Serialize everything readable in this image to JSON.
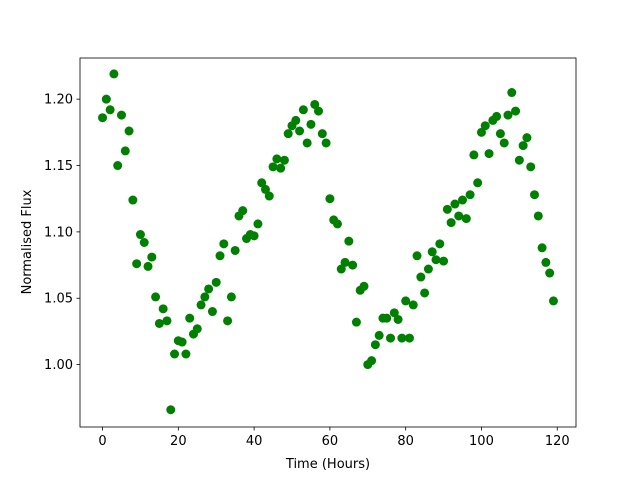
{
  "chart_data": {
    "type": "scatter",
    "xlabel": "Time (Hours)",
    "ylabel": "Normalised Flux",
    "color": "#008000",
    "xlim": [
      -5.95,
      124.95
    ],
    "ylim": [
      0.953,
      1.231
    ],
    "xticks": [
      0,
      20,
      40,
      60,
      80,
      100,
      120
    ],
    "yticks": [
      {
        "value": 1.0,
        "label": "1.00"
      },
      {
        "value": 1.05,
        "label": "1.05"
      },
      {
        "value": 1.1,
        "label": "1.10"
      },
      {
        "value": 1.15,
        "label": "1.15"
      },
      {
        "value": 1.2,
        "label": "1.20"
      }
    ],
    "grid": false,
    "x": [
      0,
      1,
      2,
      3,
      4,
      5,
      6,
      7,
      8,
      9,
      10,
      11,
      12,
      13,
      14,
      15,
      16,
      17,
      18,
      19,
      20,
      21,
      22,
      23,
      24,
      25,
      26,
      27,
      28,
      29,
      30,
      31,
      32,
      33,
      34,
      35,
      36,
      37,
      38,
      39,
      40,
      41,
      42,
      43,
      44,
      45,
      46,
      47,
      48,
      49,
      50,
      51,
      52,
      53,
      54,
      55,
      56,
      57,
      58,
      59,
      60,
      61,
      62,
      63,
      64,
      65,
      66,
      67,
      68,
      69,
      70,
      71,
      72,
      73,
      74,
      75,
      76,
      77,
      78,
      79,
      80,
      81,
      82,
      83,
      84,
      85,
      86,
      87,
      88,
      89,
      90,
      91,
      92,
      93,
      94,
      95,
      96,
      97,
      98,
      99,
      100,
      101,
      102,
      103,
      104,
      105,
      106,
      107,
      108,
      109,
      110,
      111,
      112,
      113,
      114,
      115,
      116,
      117,
      118,
      119
    ],
    "values": [
      1.186,
      1.2,
      1.192,
      1.219,
      1.15,
      1.188,
      1.161,
      1.176,
      1.124,
      1.076,
      1.098,
      1.092,
      1.074,
      1.081,
      1.051,
      1.031,
      1.042,
      1.033,
      0.966,
      1.008,
      1.018,
      1.017,
      1.008,
      1.035,
      1.023,
      1.027,
      1.045,
      1.051,
      1.057,
      1.04,
      1.062,
      1.082,
      1.091,
      1.033,
      1.051,
      1.086,
      1.112,
      1.116,
      1.095,
      1.098,
      1.097,
      1.106,
      1.137,
      1.132,
      1.127,
      1.149,
      1.155,
      1.148,
      1.154,
      1.174,
      1.18,
      1.184,
      1.176,
      1.192,
      1.167,
      1.181,
      1.196,
      1.191,
      1.174,
      1.167,
      1.125,
      1.109,
      1.106,
      1.072,
      1.077,
      1.093,
      1.075,
      1.032,
      1.056,
      1.059,
      1.0,
      1.003,
      1.015,
      1.022,
      1.035,
      1.035,
      1.02,
      1.039,
      1.034,
      1.02,
      1.048,
      1.02,
      1.045,
      1.082,
      1.066,
      1.054,
      1.072,
      1.085,
      1.079,
      1.091,
      1.078,
      1.117,
      1.107,
      1.121,
      1.112,
      1.124,
      1.11,
      1.128,
      1.158,
      1.137,
      1.175,
      1.18,
      1.159,
      1.184,
      1.187,
      1.174,
      1.167,
      1.188,
      1.205,
      1.191,
      1.154,
      1.165,
      1.171,
      1.149,
      1.128,
      1.112,
      1.088,
      1.077,
      1.069,
      1.048
    ]
  }
}
